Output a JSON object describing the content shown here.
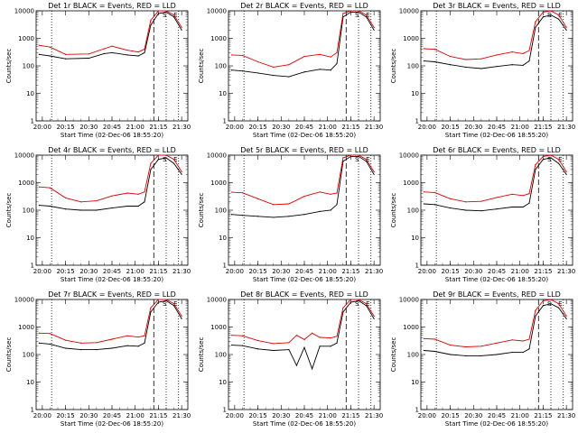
{
  "footer_xlabel": "Start Time (02-Dec-06 18:55:20)",
  "ylabel": "Counts/sec",
  "colors": {
    "events": "#000000",
    "lld": "#e00000"
  },
  "chart_data": [
    {
      "type": "line",
      "title": "Det 1r BLACK = Events, RED = LLD",
      "xlabel": "Start Time (02-Dec-06 18:55:20)",
      "ylabel": "Counts/sec",
      "yscale": "log",
      "ylim": [
        1,
        10000
      ],
      "xticks": [
        "20:00",
        "20:15",
        "20:30",
        "20:45",
        "21:00",
        "21:15",
        "21:30"
      ],
      "yticks": [
        "1",
        "10",
        "100",
        "1000",
        "10000"
      ],
      "annotations": [
        "S",
        "E"
      ],
      "x": [
        "19:58",
        "20:05",
        "20:15",
        "20:30",
        "20:40",
        "20:45",
        "20:55",
        "21:02",
        "21:06",
        "21:10",
        "21:15",
        "21:20",
        "21:25",
        "21:30"
      ],
      "series": [
        {
          "name": "Events",
          "values": [
            260,
            230,
            180,
            190,
            280,
            300,
            250,
            230,
            300,
            3000,
            8000,
            9000,
            6000,
            2000
          ]
        },
        {
          "name": "LLD",
          "values": [
            560,
            480,
            260,
            270,
            420,
            520,
            370,
            320,
            400,
            4500,
            10000,
            10000,
            7000,
            2500
          ]
        }
      ]
    },
    {
      "type": "line",
      "title": "Det 2r BLACK = Events, RED = LLD",
      "xlabel": "Start Time (02-Dec-06 18:55:20)",
      "ylabel": "Counts/sec",
      "yscale": "log",
      "ylim": [
        1,
        10000
      ],
      "xticks": [
        "20:00",
        "20:15",
        "20:30",
        "20:45",
        "21:00",
        "21:15",
        "21:30"
      ],
      "yticks": [
        "1",
        "10",
        "100",
        "1000",
        "10000"
      ],
      "annotations": [
        "S",
        "E"
      ],
      "x": [
        "19:58",
        "20:05",
        "20:15",
        "20:25",
        "20:35",
        "20:45",
        "20:55",
        "21:02",
        "21:06",
        "21:10",
        "21:15",
        "21:20",
        "21:25",
        "21:30"
      ],
      "series": [
        {
          "name": "Events",
          "values": [
            70,
            65,
            55,
            45,
            40,
            60,
            75,
            70,
            120,
            6000,
            9000,
            9000,
            6000,
            2000
          ]
        },
        {
          "name": "LLD",
          "values": [
            250,
            240,
            140,
            90,
            110,
            220,
            260,
            210,
            300,
            8000,
            10000,
            10000,
            7000,
            2500
          ]
        }
      ]
    },
    {
      "type": "line",
      "title": "Det 3r BLACK = Events, RED = LLD",
      "xlabel": "Start Time (02-Dec-06 18:55:20)",
      "ylabel": "Counts/sec",
      "yscale": "log",
      "ylim": [
        1,
        10000
      ],
      "xticks": [
        "20:00",
        "20:15",
        "20:30",
        "20:45",
        "21:00",
        "21:15",
        "21:30"
      ],
      "yticks": [
        "1",
        "10",
        "100",
        "1000",
        "10000"
      ],
      "annotations": [
        "S",
        "E"
      ],
      "x": [
        "19:58",
        "20:05",
        "20:15",
        "20:25",
        "20:35",
        "20:45",
        "20:55",
        "21:02",
        "21:06",
        "21:10",
        "21:15",
        "21:20",
        "21:25",
        "21:30"
      ],
      "series": [
        {
          "name": "Events",
          "values": [
            150,
            140,
            110,
            90,
            80,
            95,
            110,
            105,
            150,
            2500,
            6000,
            7000,
            5000,
            2000
          ]
        },
        {
          "name": "LLD",
          "values": [
            420,
            400,
            220,
            170,
            180,
            250,
            320,
            280,
            360,
            4000,
            9000,
            10000,
            7000,
            2500
          ]
        }
      ]
    },
    {
      "type": "line",
      "title": "Det 4r BLACK = Events, RED = LLD",
      "xlabel": "Start Time (02-Dec-06 18:55:20)",
      "ylabel": "Counts/sec",
      "yscale": "log",
      "ylim": [
        1,
        10000
      ],
      "xticks": [
        "20:00",
        "20:15",
        "20:30",
        "20:45",
        "21:00",
        "21:15",
        "21:30"
      ],
      "yticks": [
        "1",
        "10",
        "100",
        "1000",
        "10000"
      ],
      "annotations": [
        "S",
        "E"
      ],
      "x": [
        "19:58",
        "20:05",
        "20:15",
        "20:25",
        "20:35",
        "20:45",
        "20:55",
        "21:02",
        "21:06",
        "21:10",
        "21:15",
        "21:20",
        "21:25",
        "21:30"
      ],
      "series": [
        {
          "name": "Events",
          "values": [
            150,
            140,
            110,
            100,
            100,
            120,
            140,
            140,
            200,
            3000,
            7000,
            8000,
            5000,
            2000
          ]
        },
        {
          "name": "LLD",
          "values": [
            700,
            650,
            280,
            200,
            220,
            330,
            420,
            380,
            460,
            5000,
            10000,
            10000,
            7000,
            2500
          ]
        }
      ]
    },
    {
      "type": "line",
      "title": "Det 5r BLACK = Events, RED = LLD",
      "xlabel": "Start Time (02-Dec-06 18:55:20)",
      "ylabel": "Counts/sec",
      "yscale": "log",
      "ylim": [
        1,
        10000
      ],
      "xticks": [
        "20:00",
        "20:15",
        "20:30",
        "20:45",
        "21:00",
        "21:15",
        "21:30"
      ],
      "yticks": [
        "1",
        "10",
        "100",
        "1000",
        "10000"
      ],
      "annotations": [
        "S",
        "E"
      ],
      "x": [
        "19:58",
        "20:05",
        "20:15",
        "20:25",
        "20:35",
        "20:45",
        "20:55",
        "21:02",
        "21:06",
        "21:10",
        "21:15",
        "21:20",
        "21:25",
        "21:30"
      ],
      "series": [
        {
          "name": "Events",
          "values": [
            70,
            65,
            60,
            55,
            60,
            70,
            90,
            100,
            160,
            6000,
            9000,
            9000,
            6000,
            2000
          ]
        },
        {
          "name": "LLD",
          "values": [
            450,
            430,
            260,
            160,
            170,
            320,
            460,
            380,
            420,
            8000,
            10000,
            10000,
            7000,
            2500
          ]
        }
      ]
    },
    {
      "type": "line",
      "title": "Det 6r BLACK = Events, RED = LLD",
      "xlabel": "Start Time (02-Dec-06 18:55:20)",
      "ylabel": "Counts/sec",
      "yscale": "log",
      "ylim": [
        1,
        10000
      ],
      "xticks": [
        "20:00",
        "20:15",
        "20:30",
        "20:45",
        "21:00",
        "21:15",
        "21:30"
      ],
      "yticks": [
        "1",
        "10",
        "100",
        "1000",
        "10000"
      ],
      "annotations": [
        "S",
        "E"
      ],
      "x": [
        "19:58",
        "20:05",
        "20:15",
        "20:25",
        "20:35",
        "20:45",
        "20:55",
        "21:02",
        "21:06",
        "21:10",
        "21:15",
        "21:20",
        "21:25",
        "21:30"
      ],
      "series": [
        {
          "name": "Events",
          "values": [
            170,
            160,
            120,
            100,
            95,
            110,
            130,
            130,
            180,
            3000,
            7000,
            8000,
            5000,
            2000
          ]
        },
        {
          "name": "LLD",
          "values": [
            460,
            440,
            260,
            200,
            210,
            290,
            380,
            340,
            400,
            4500,
            9000,
            10000,
            7000,
            2500
          ]
        }
      ]
    },
    {
      "type": "line",
      "title": "Det 7r BLACK = Events, RED = LLD",
      "xlabel": "Start Time (02-Dec-06 18:55:20)",
      "ylabel": "Counts/sec",
      "yscale": "log",
      "ylim": [
        1,
        10000
      ],
      "xticks": [
        "20:00",
        "20:15",
        "20:30",
        "20:45",
        "21:00",
        "21:15",
        "21:30"
      ],
      "yticks": [
        "1",
        "10",
        "100",
        "1000",
        "10000"
      ],
      "annotations": [
        "S",
        "E"
      ],
      "x": [
        "19:58",
        "20:05",
        "20:15",
        "20:25",
        "20:35",
        "20:45",
        "20:55",
        "21:02",
        "21:06",
        "21:10",
        "21:15",
        "21:20",
        "21:25",
        "21:30"
      ],
      "series": [
        {
          "name": "Events",
          "values": [
            260,
            240,
            170,
            150,
            150,
            170,
            210,
            200,
            260,
            3500,
            8000,
            9000,
            6000,
            2000
          ]
        },
        {
          "name": "LLD",
          "values": [
            600,
            580,
            330,
            260,
            270,
            360,
            480,
            430,
            480,
            5000,
            10000,
            10000,
            7000,
            2500
          ]
        }
      ]
    },
    {
      "type": "line",
      "title": "Det 8r BLACK = Events, RED = LLD",
      "xlabel": "Start Time (02-Dec-06 18:55:20)",
      "ylabel": "Counts/sec",
      "yscale": "log",
      "ylim": [
        1,
        10000
      ],
      "xticks": [
        "20:00",
        "20:15",
        "20:30",
        "20:45",
        "21:00",
        "21:15",
        "21:30"
      ],
      "yticks": [
        "1",
        "10",
        "100",
        "1000",
        "10000"
      ],
      "annotations": [
        "S",
        "E"
      ],
      "x": [
        "19:58",
        "20:05",
        "20:15",
        "20:25",
        "20:35",
        "20:40",
        "20:45",
        "20:50",
        "20:55",
        "21:02",
        "21:06",
        "21:10",
        "21:15",
        "21:20",
        "21:25",
        "21:30"
      ],
      "series": [
        {
          "name": "Events",
          "values": [
            220,
            210,
            160,
            140,
            150,
            40,
            180,
            30,
            200,
            200,
            260,
            3500,
            8000,
            9000,
            6000,
            2000
          ]
        },
        {
          "name": "LLD",
          "values": [
            500,
            480,
            320,
            250,
            270,
            500,
            350,
            600,
            420,
            400,
            460,
            5000,
            10000,
            10000,
            7000,
            2500
          ]
        }
      ]
    },
    {
      "type": "line",
      "title": "Det 9r BLACK = Events, RED = LLD",
      "xlabel": "Start Time (02-Dec-06 18:55:20)",
      "ylabel": "Counts/sec",
      "yscale": "log",
      "ylim": [
        1,
        10000
      ],
      "xticks": [
        "20:00",
        "20:15",
        "20:30",
        "20:45",
        "21:00",
        "21:15",
        "21:30"
      ],
      "yticks": [
        "1",
        "10",
        "100",
        "1000",
        "10000"
      ],
      "annotations": [
        "S",
        "E"
      ],
      "x": [
        "19:58",
        "20:05",
        "20:15",
        "20:25",
        "20:35",
        "20:45",
        "20:55",
        "21:02",
        "21:06",
        "21:10",
        "21:15",
        "21:20",
        "21:25",
        "21:30"
      ],
      "series": [
        {
          "name": "Events",
          "values": [
            140,
            130,
            100,
            90,
            90,
            100,
            120,
            120,
            160,
            2500,
            6000,
            7000,
            5000,
            2000
          ]
        },
        {
          "name": "LLD",
          "values": [
            380,
            360,
            220,
            190,
            200,
            260,
            340,
            310,
            360,
            4000,
            9000,
            10000,
            7000,
            2500
          ]
        }
      ]
    }
  ]
}
